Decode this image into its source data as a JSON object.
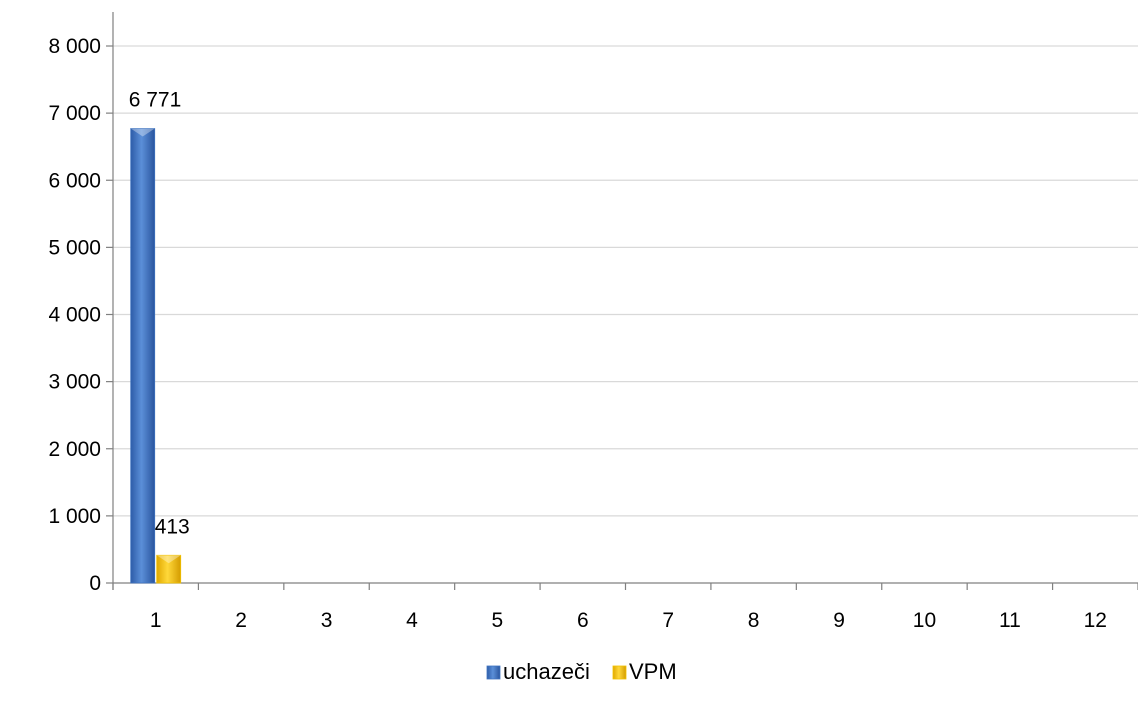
{
  "chart_data": {
    "type": "bar",
    "categories": [
      "1",
      "2",
      "3",
      "4",
      "5",
      "6",
      "7",
      "8",
      "9",
      "10",
      "11",
      "12"
    ],
    "series": [
      {
        "name": "uchazeči",
        "color": "#3F74C0",
        "values": [
          6771,
          null,
          null,
          null,
          null,
          null,
          null,
          null,
          null,
          null,
          null,
          null
        ],
        "data_labels": [
          "6 771",
          "",
          "",
          "",
          "",
          "",
          "",
          "",
          "",
          "",
          "",
          ""
        ]
      },
      {
        "name": "VPM",
        "color": "#F2C200",
        "values": [
          413,
          null,
          null,
          null,
          null,
          null,
          null,
          null,
          null,
          null,
          null,
          null
        ],
        "data_labels": [
          "413",
          "",
          "",
          "",
          "",
          "",
          "",
          "",
          "",
          "",
          "",
          ""
        ]
      }
    ],
    "ylim": [
      0,
      8000
    ],
    "yticks": [
      0,
      1000,
      2000,
      3000,
      4000,
      5000,
      6000,
      7000,
      8000
    ],
    "ytick_labels": [
      "0",
      "1 000",
      "2 000",
      "3 000",
      "4 000",
      "5 000",
      "6 000",
      "7 000",
      "8 000"
    ],
    "grid": true,
    "legend_position": "bottom"
  }
}
